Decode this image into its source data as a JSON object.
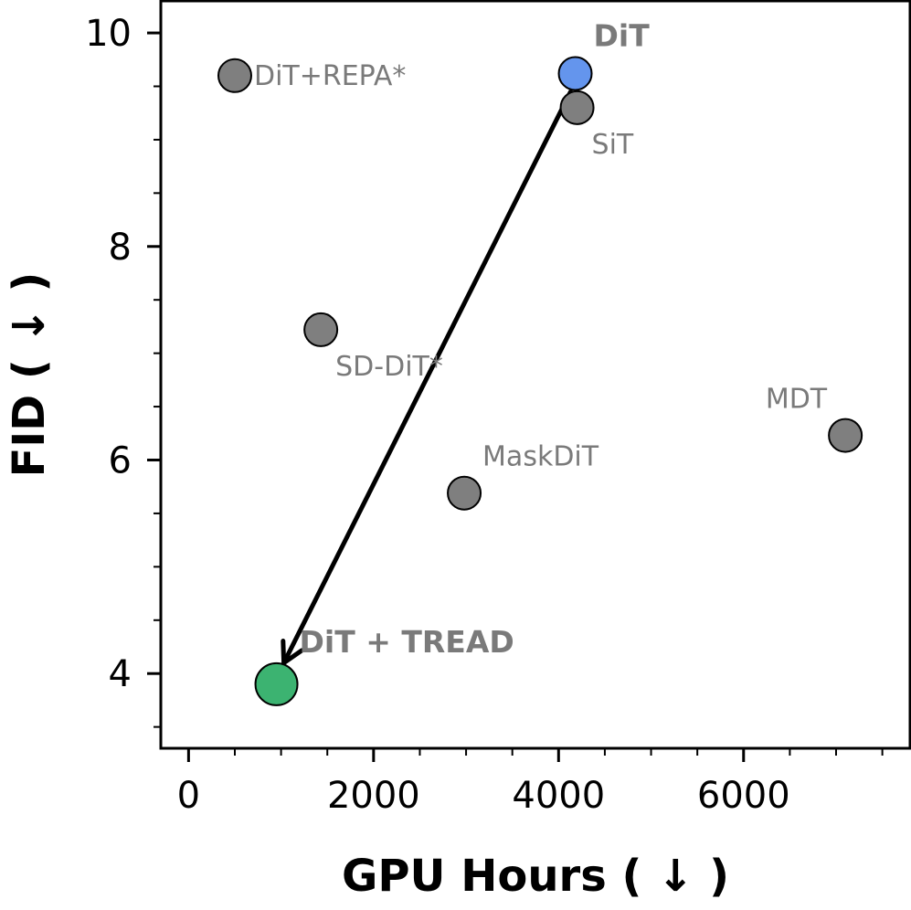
{
  "chart_data": {
    "type": "scatter",
    "xlabel": "GPU Hours ( ↓ )",
    "ylabel": "FID ( ↓ )",
    "xlim": [
      -300,
      7800
    ],
    "ylim": [
      3.3,
      10.3
    ],
    "xticks": [
      0,
      2000,
      4000,
      6000
    ],
    "yticks": [
      4,
      6,
      8,
      10
    ],
    "x_minor_step": 500,
    "y_minor_step": 0.5,
    "grid": false,
    "points": [
      {
        "label": "DiT+REPA*",
        "x": 500,
        "y": 9.6,
        "color": "#7f7f7f",
        "radius": 18,
        "label_pos": "right",
        "bold": false
      },
      {
        "label": "DiT",
        "x": 4180,
        "y": 9.62,
        "color": "#6495ed",
        "radius": 18,
        "label_pos": "above-right",
        "bold": true,
        "label_color": "#6495ed"
      },
      {
        "label": "SiT",
        "x": 4200,
        "y": 9.3,
        "color": "#7f7f7f",
        "radius": 18,
        "label_pos": "below-right",
        "bold": false
      },
      {
        "label": "SD-DiT*",
        "x": 1430,
        "y": 7.22,
        "color": "#7f7f7f",
        "radius": 18,
        "label_pos": "below-right",
        "bold": false
      },
      {
        "label": "MaskDiT",
        "x": 2980,
        "y": 5.69,
        "color": "#7f7f7f",
        "radius": 18,
        "label_pos": "above-right",
        "bold": false
      },
      {
        "label": "MDT",
        "x": 7100,
        "y": 6.23,
        "color": "#7f7f7f",
        "radius": 18,
        "label_pos": "above-left",
        "bold": false
      },
      {
        "label": "DiT + TREAD",
        "x": 950,
        "y": 3.9,
        "color": "#3cb371",
        "radius": 23,
        "label_pos": "above-right",
        "bold": true,
        "label_color": "#3cb371"
      }
    ],
    "arrow": {
      "from": {
        "x": 4130,
        "y": 9.45
      },
      "to": {
        "x": 1030,
        "y": 4.1
      },
      "color": "#000000"
    }
  }
}
